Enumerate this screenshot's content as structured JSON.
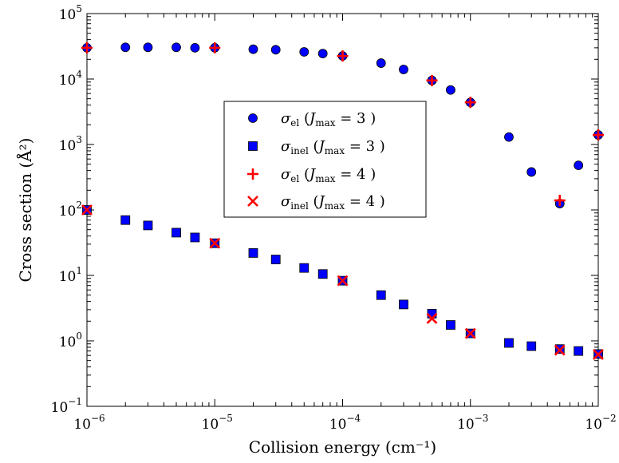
{
  "chart_data": {
    "type": "scatter",
    "title": "",
    "xlabel": "Collision energy (cm⁻¹)",
    "ylabel": "Cross section (Å²)",
    "xscale": "log",
    "yscale": "log",
    "xlim": [
      1e-06,
      0.01
    ],
    "ylim": [
      0.1,
      100000
    ],
    "grid": false,
    "legend_position": "center",
    "x_tick_labels": [
      {
        "value": 1e-06,
        "base": "10",
        "exp": "−6"
      },
      {
        "value": 1e-05,
        "base": "10",
        "exp": "−5"
      },
      {
        "value": 0.0001,
        "base": "10",
        "exp": "−4"
      },
      {
        "value": 0.001,
        "base": "10",
        "exp": "−3"
      },
      {
        "value": 0.01,
        "base": "10",
        "exp": "−2"
      }
    ],
    "y_tick_labels": [
      {
        "value": 0.1,
        "base": "10",
        "exp": "−1"
      },
      {
        "value": 1,
        "base": "10",
        "exp": "0"
      },
      {
        "value": 10,
        "base": "10",
        "exp": "1"
      },
      {
        "value": 100,
        "base": "10",
        "exp": "2"
      },
      {
        "value": 1000,
        "base": "10",
        "exp": "3"
      },
      {
        "value": 10000,
        "base": "10",
        "exp": "4"
      },
      {
        "value": 100000,
        "base": "10",
        "exp": "5"
      }
    ],
    "series": [
      {
        "name": "σel (Jmax = 3)",
        "legend": {
          "sym": "σ",
          "sub": "el",
          "j": "J",
          "jsub": "max",
          "val": "3"
        },
        "marker": "circle",
        "color": "#0000ff",
        "x": [
          1e-06,
          2e-06,
          3e-06,
          5e-06,
          7e-06,
          1e-05,
          2e-05,
          3e-05,
          5e-05,
          7e-05,
          0.0001,
          0.0002,
          0.0003,
          0.0005,
          0.0007,
          0.001,
          0.002,
          0.003,
          0.005,
          0.007,
          0.01
        ],
        "y": [
          30000,
          30500,
          30500,
          30500,
          30000,
          30000,
          28500,
          28000,
          26000,
          24500,
          22500,
          17500,
          14000,
          9500,
          6800,
          4400,
          1300,
          380,
          125,
          480,
          1400
        ]
      },
      {
        "name": "σinel (Jmax = 3)",
        "legend": {
          "sym": "σ",
          "sub": "inel",
          "j": "J",
          "jsub": "max",
          "val": "3"
        },
        "marker": "square",
        "color": "#0000ff",
        "x": [
          1e-06,
          2e-06,
          3e-06,
          5e-06,
          7e-06,
          1e-05,
          2e-05,
          3e-05,
          5e-05,
          7e-05,
          0.0001,
          0.0002,
          0.0003,
          0.0005,
          0.0007,
          0.001,
          0.002,
          0.003,
          0.005,
          0.007,
          0.01
        ],
        "y": [
          100,
          70,
          58,
          45,
          38,
          31,
          22,
          17.5,
          13,
          10.5,
          8.3,
          5.0,
          3.6,
          2.6,
          1.75,
          1.3,
          0.93,
          0.83,
          0.75,
          0.7,
          0.63
        ]
      },
      {
        "name": "σel (Jmax = 4)",
        "legend": {
          "sym": "σ",
          "sub": "el",
          "j": "J",
          "jsub": "max",
          "val": "4"
        },
        "marker": "plus",
        "color": "#ff0000",
        "x": [
          1e-06,
          1e-05,
          0.0001,
          0.0005,
          0.001,
          0.005,
          0.01
        ],
        "y": [
          30000,
          30000,
          22500,
          9500,
          4400,
          140,
          1400
        ]
      },
      {
        "name": "σinel (Jmax = 4)",
        "legend": {
          "sym": "σ",
          "sub": "inel",
          "j": "J",
          "jsub": "max",
          "val": "4"
        },
        "marker": "x",
        "color": "#ff0000",
        "x": [
          1e-06,
          1e-05,
          0.0001,
          0.0005,
          0.001,
          0.005,
          0.01
        ],
        "y": [
          100,
          31,
          8.3,
          2.2,
          1.3,
          0.72,
          0.62
        ]
      }
    ]
  }
}
